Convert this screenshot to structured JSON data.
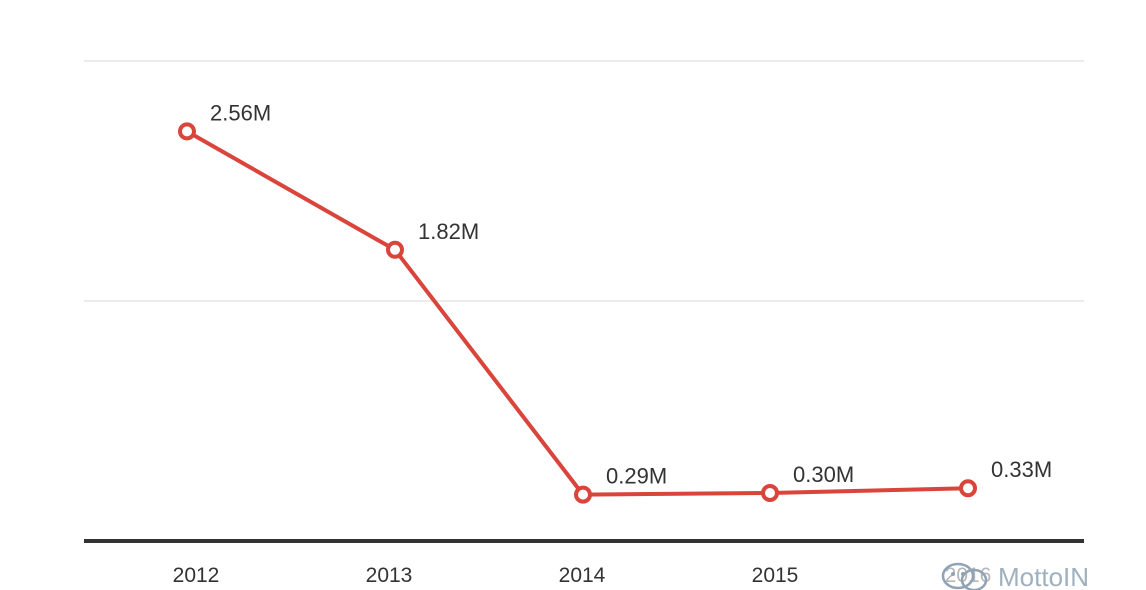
{
  "chart_data": {
    "type": "line",
    "categories": [
      "2012",
      "2013",
      "2014",
      "2015",
      "2016"
    ],
    "series": [
      {
        "values": [
          2.56,
          1.82,
          0.29,
          0.3,
          0.33
        ],
        "labels": [
          "2.56M",
          "1.82M",
          "0.29M",
          "0.30M",
          "0.33M"
        ],
        "color": "#d9443b"
      }
    ],
    "ylim": [
      0,
      3.0
    ],
    "grid": true,
    "title": "",
    "xlabel": "",
    "ylabel": ""
  },
  "watermark": {
    "text": "MottoIN"
  },
  "colors": {
    "line": "#d9443b",
    "grid": "#d9d9d9",
    "axis": "#333333",
    "text": "#333333"
  }
}
